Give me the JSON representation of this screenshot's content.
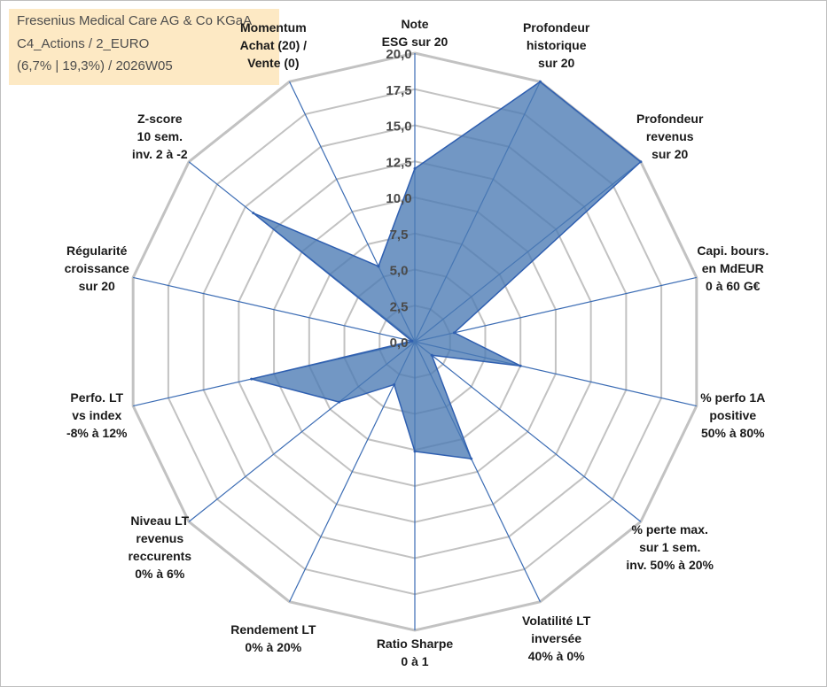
{
  "header": {
    "lines": [
      "Fresenius Medical Care AG & Co KGaA",
      "C4_Actions / 2_EURO",
      "(6,7% | 19,3%) / 2026W05"
    ]
  },
  "chart_data": {
    "type": "radar",
    "rmax": 20,
    "ticks": [
      "0,0",
      "2,5",
      "5,0",
      "7,5",
      "10,0",
      "12,5",
      "15,0",
      "17,5",
      "20,0"
    ],
    "axes": [
      {
        "lines": [
          "Note",
          "ESG sur 20"
        ]
      },
      {
        "lines": [
          "Profondeur",
          "historique",
          "sur 20"
        ]
      },
      {
        "lines": [
          "Profondeur",
          "revenus",
          "sur 20"
        ]
      },
      {
        "lines": [
          "Capi. bours.",
          "en MdEUR",
          "0 à 60 G€"
        ]
      },
      {
        "lines": [
          "% perfo 1A",
          "positive",
          "50% à 80%"
        ]
      },
      {
        "lines": [
          "% perte max.",
          "sur 1 sem.",
          "inv. 50% à 20%"
        ]
      },
      {
        "lines": [
          "Volatilité LT",
          "inversée",
          "40% à 0%"
        ]
      },
      {
        "lines": [
          "Ratio Sharpe",
          "0 à 1"
        ]
      },
      {
        "lines": [
          "Rendement LT",
          "0% à 20%"
        ]
      },
      {
        "lines": [
          "Niveau LT",
          "revenus",
          "reccurents",
          "0% à 6%"
        ]
      },
      {
        "lines": [
          "Perfo. LT",
          "vs index",
          "-8% à 12%"
        ]
      },
      {
        "lines": [
          "Régularité",
          "croissance",
          "sur 20"
        ]
      },
      {
        "lines": [
          "Z-score",
          "10 sem.",
          "inv. 2 à -2"
        ]
      },
      {
        "lines": [
          "Momentum",
          "Achat (20) /",
          "Vente (0)"
        ]
      }
    ],
    "series": [
      {
        "values": [
          12.0,
          20.0,
          20.0,
          2.8,
          7.5,
          1.5,
          9.0,
          7.6,
          3.3,
          6.7,
          11.6,
          0.2,
          14.3,
          5.8
        ],
        "color": "#4a7ab4"
      }
    ],
    "colors": {
      "grid": "#c2c2c2",
      "spoke": "#3b6cb4",
      "fill": "#4a7ab4",
      "stroke": "#2f5fb0",
      "header_bg": "#fde9c4"
    }
  }
}
